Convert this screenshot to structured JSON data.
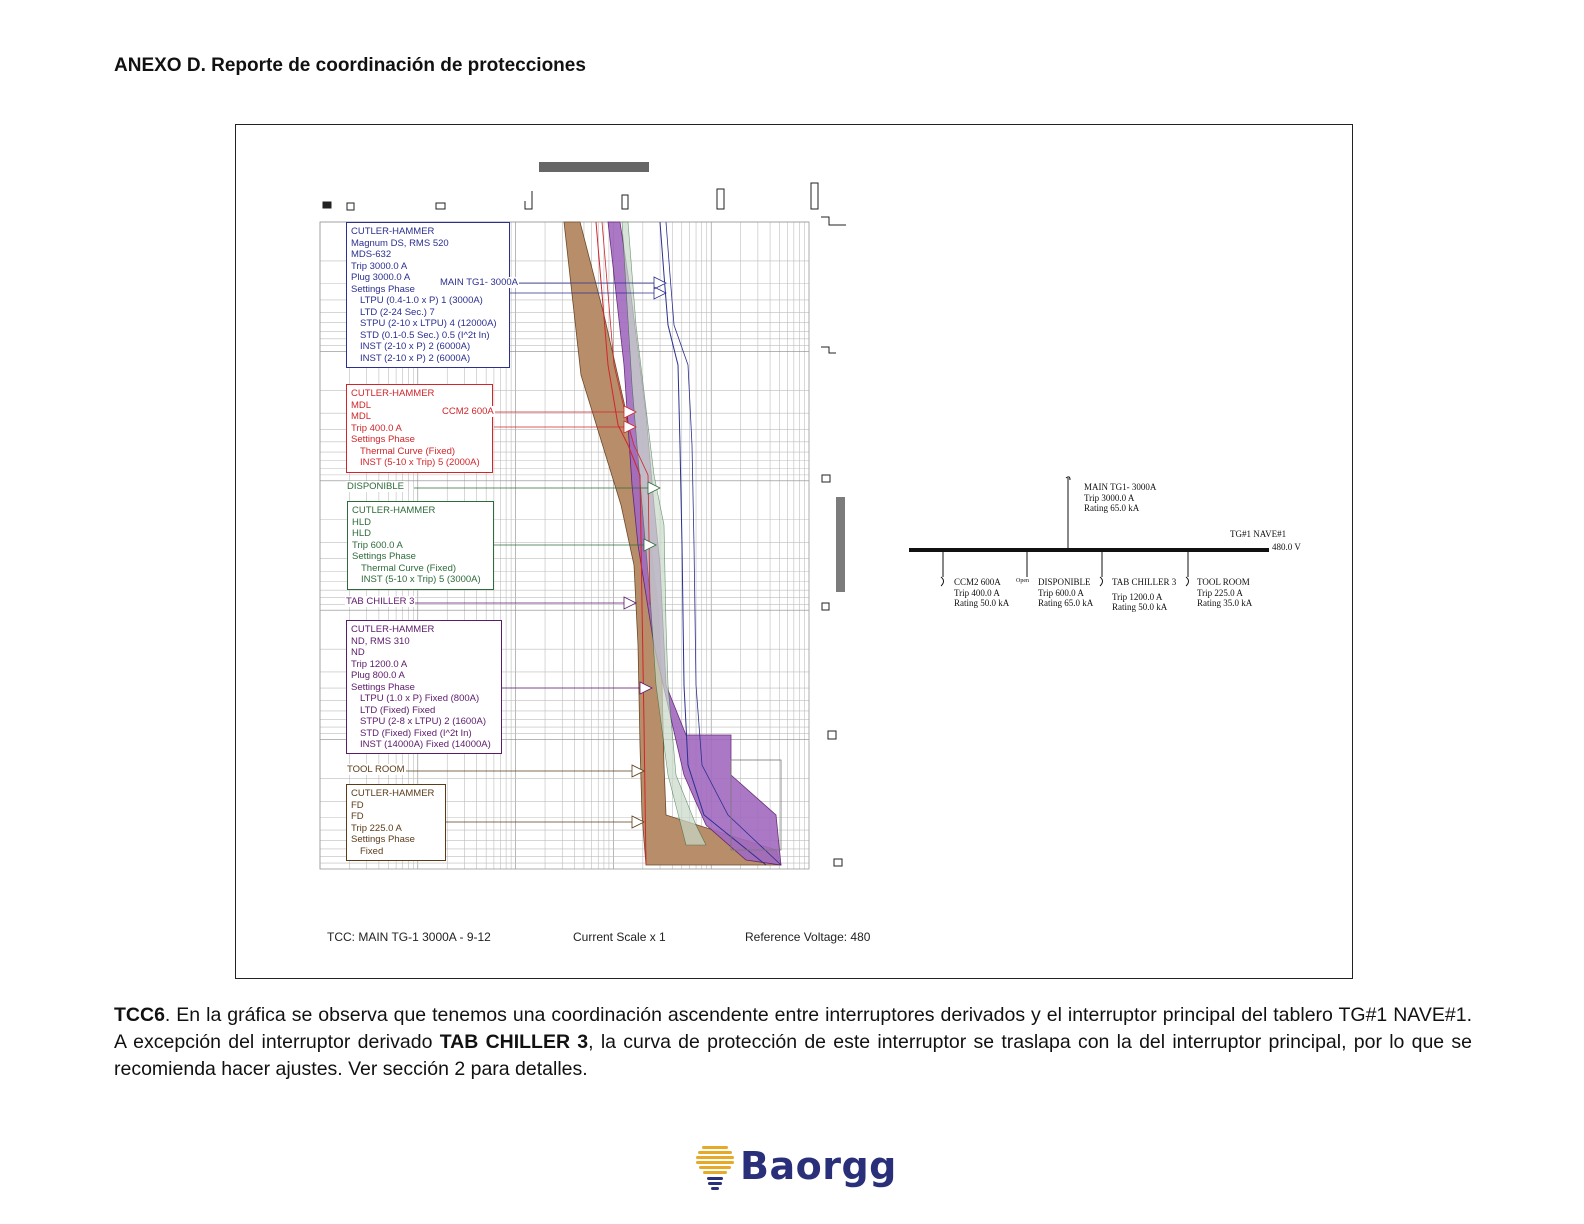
{
  "document": {
    "heading": "ANEXO D. Reporte de coordinación de protecciones"
  },
  "tcc": {
    "footer": {
      "tcc_name": "TCC:  MAIN TG-1 3000A - 9-12",
      "current_scale": "Current Scale  x 1",
      "reference_voltage": "Reference Voltage: 480"
    },
    "devices": [
      {
        "color": "#2b2f8f",
        "lines": [
          "CUTLER-HAMMER",
          "Magnum DS, RMS 520",
          "MDS-632",
          "Trip 3000.0 A",
          "Plug 3000.0 A",
          "Settings Phase"
        ],
        "settings": [
          "LTPU (0.4-1.0 x P) 1 (3000A)",
          "LTD (2-24 Sec.) 7",
          "STPU (2-10 x LTPU) 4 (12000A)",
          "STD (0.1-0.5 Sec.) 0.5 (I^2t In)",
          "INST (2-10 x P) 2 (6000A)",
          "INST (2-10 x P) 2 (6000A)"
        ]
      },
      {
        "color": "#d1252a",
        "lines": [
          "CUTLER-HAMMER",
          "MDL",
          "MDL",
          "Trip 400.0 A",
          "Settings Phase"
        ],
        "settings": [
          "Thermal Curve (Fixed)",
          "INST (5-10 x Trip) 5 (2000A)"
        ]
      },
      {
        "color": "#2e6b3a",
        "lines": [
          "CUTLER-HAMMER",
          "HLD",
          "HLD",
          "Trip 600.0 A",
          "Settings Phase"
        ],
        "settings": [
          "Thermal Curve (Fixed)",
          "INST (5-10 x Trip) 5 (3000A)"
        ]
      },
      {
        "color": "#5c1a6b",
        "lines": [
          "CUTLER-HAMMER",
          "ND, RMS 310",
          "ND",
          "Trip 1200.0 A",
          "Plug 800.0 A",
          "Settings Phase"
        ],
        "settings": [
          "LTPU (1.0 x P) Fixed (800A)",
          "LTD (Fixed) Fixed",
          "STPU (2-8 x LTPU) 2 (1600A)",
          "STD (Fixed) Fixed (I^2t In)",
          "INST (14000A) Fixed (14000A)"
        ]
      },
      {
        "color": "#5b3b1a",
        "lines": [
          "CUTLER-HAMMER",
          "FD",
          "FD",
          "Trip 225.0 A",
          "Settings Phase"
        ],
        "settings": [
          "Fixed"
        ]
      }
    ],
    "curve_labels": {
      "main": "MAIN TG1- 3000A",
      "ccm2": "CCM2 600A",
      "disponible": "DISPONIBLE",
      "tab_chiller": "TAB CHILLER 3",
      "tool_room": "TOOL ROOM"
    }
  },
  "single_line": {
    "main_breaker": [
      "MAIN TG1- 3000A",
      "Trip 3000.0 A",
      "Rating 65.0 kA"
    ],
    "bus_name": "TG#1 NAVE#1",
    "bus_voltage": "480.0 V",
    "open_tag": "Open",
    "feeders": [
      [
        "CCM2 600A",
        "Trip 400.0 A",
        "Rating 50.0 kA"
      ],
      [
        "DISPONIBLE",
        "Trip 600.0 A",
        "Rating 65.0 kA"
      ],
      [
        "TAB CHILLER 3",
        "Trip 1200.0 A",
        "Rating 50.0 kA"
      ],
      [
        "TOOL ROOM",
        "Trip 225.0 A",
        "Rating 35.0 kA"
      ]
    ]
  },
  "caption": {
    "label": "TCC6",
    "part1": ". En la gráfica se observa que tenemos una coordinación ascendente entre interruptores derivados y el interruptor principal del tablero TG#1 NAVE#1. A excepción del interruptor derivado ",
    "highlight": "TAB CHILLER 3",
    "part2": ", la curva de protección de este interruptor se traslapa con la del interruptor principal, por lo que se recomienda hacer ajustes. Ver sección 2 para detalles."
  },
  "logo": {
    "brand": "Baorgg"
  }
}
